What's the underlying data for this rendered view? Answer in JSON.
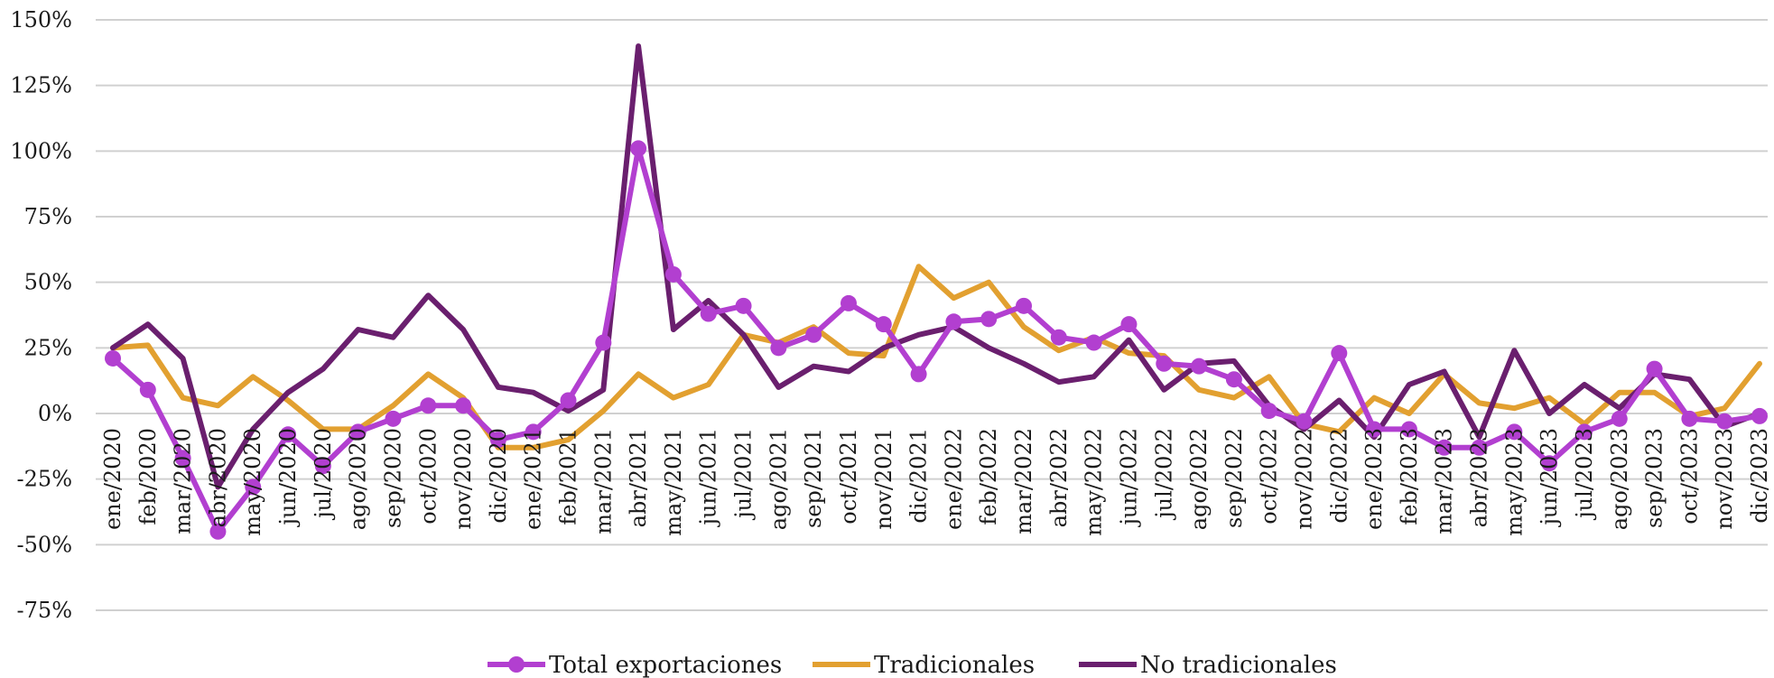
{
  "chart_data": {
    "type": "line",
    "title": "",
    "xlabel": "",
    "ylabel": "",
    "ylim": [
      -75,
      150
    ],
    "yticks": [
      150,
      125,
      100,
      75,
      50,
      25,
      0,
      -25,
      -50,
      -75
    ],
    "ytick_labels": [
      "150%",
      "125%",
      "100%",
      "75%",
      "50%",
      "25%",
      "0%",
      "-25%",
      "-50%",
      "-75%"
    ],
    "grid": true,
    "legend_position": "bottom",
    "categories": [
      "ene/2020",
      "feb/2020",
      "mar/2020",
      "abr/2020",
      "may/2020",
      "jun/2020",
      "jul/2020",
      "ago/2020",
      "sep/2020",
      "oct/2020",
      "nov/2020",
      "dic/2020",
      "ene/2021",
      "feb/2021",
      "mar/2021",
      "abr/2021",
      "may/2021",
      "jun/2021",
      "jul/2021",
      "ago/2021",
      "sep/2021",
      "oct/2021",
      "nov/2021",
      "dic/2021",
      "ene/2022",
      "feb/2022",
      "mar/2022",
      "abr/2022",
      "may/2022",
      "jun/2022",
      "jul/2022",
      "ago/2022",
      "sep/2022",
      "oct/2022",
      "nov/2022",
      "dic/2022",
      "ene/2023",
      "feb/2023",
      "mar/2023",
      "abr/2023",
      "may/2023",
      "jun/2023",
      "jul/2023",
      "ago/2023",
      "sep/2023",
      "oct/2023",
      "nov/2023",
      "dic/2023"
    ],
    "series": [
      {
        "name": "Total exportaciones",
        "color": "#b23fd0",
        "markers": true,
        "values": [
          21,
          9,
          -17,
          -45,
          -28,
          -8,
          -20,
          -7,
          -2,
          3,
          3,
          -10,
          -7,
          5,
          27,
          101,
          53,
          38,
          41,
          25,
          30,
          42,
          34,
          15,
          35,
          36,
          41,
          29,
          27,
          34,
          19,
          18,
          13,
          1,
          -3,
          23,
          -6,
          -6,
          -13,
          -13,
          -7,
          -19,
          -7,
          -2,
          17,
          -2,
          -3,
          -1
        ]
      },
      {
        "name": "Tradicionales",
        "color": "#e2a030",
        "markers": false,
        "values": [
          25,
          26,
          6,
          3,
          14,
          5,
          -6,
          -6,
          3,
          15,
          6,
          -13,
          -13,
          -10,
          1,
          15,
          6,
          11,
          30,
          27,
          33,
          23,
          22,
          56,
          44,
          50,
          33,
          24,
          29,
          23,
          22,
          9,
          6,
          14,
          -4,
          -7,
          6,
          0,
          15,
          4,
          2,
          6,
          -4,
          8,
          8,
          -1,
          2,
          19
        ]
      },
      {
        "name": "No tradicionales",
        "color": "#6a1f6e",
        "markers": false,
        "values": [
          25,
          34,
          21,
          -28,
          -6,
          8,
          17,
          32,
          29,
          45,
          32,
          10,
          8,
          1,
          9,
          140,
          32,
          43,
          30,
          10,
          18,
          16,
          25,
          30,
          33,
          25,
          19,
          12,
          14,
          28,
          9,
          19,
          20,
          3,
          -6,
          5,
          -9,
          11,
          16,
          -9,
          24,
          0,
          11,
          2,
          15,
          13,
          -5,
          0
        ]
      }
    ]
  }
}
